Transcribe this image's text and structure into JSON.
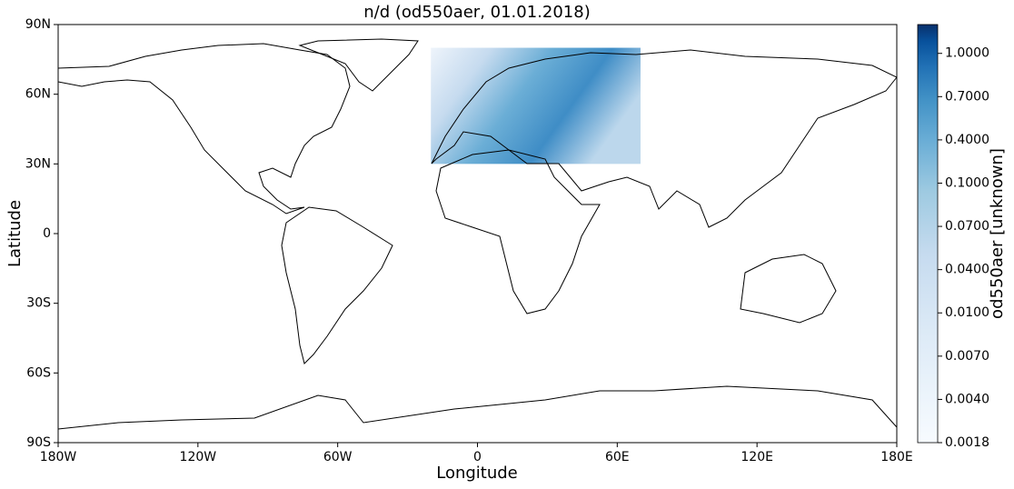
{
  "chart_data": {
    "type": "map",
    "title": "n/d (od550aer, 01.01.2018)",
    "x_label": "Longitude",
    "y_label": "Latitude",
    "xlim": [
      -180,
      180
    ],
    "ylim": [
      -90,
      90
    ],
    "xticks": [
      {
        "value": -180,
        "label": "180W"
      },
      {
        "value": -120,
        "label": "120W"
      },
      {
        "value": -60,
        "label": "60W"
      },
      0,
      {
        "value": 60,
        "label": "60E"
      },
      {
        "value": 120,
        "label": "120E"
      },
      {
        "value": 180,
        "label": "180E"
      }
    ],
    "yticks": [
      {
        "value": 90,
        "label": "90N"
      },
      {
        "value": 60,
        "label": "60N"
      },
      {
        "value": 30,
        "label": "30N"
      },
      0,
      {
        "value": -30,
        "label": "30S"
      },
      {
        "value": -60,
        "label": "60S"
      },
      {
        "value": -90,
        "label": "90S"
      }
    ],
    "field": {
      "lon": [
        -20,
        70
      ],
      "lat": [
        30,
        80
      ]
    },
    "colorbar": {
      "label": "od550aer [unknown]",
      "lim": [
        0.0018,
        1.2
      ],
      "ticks": [
        0.0018,
        {
          "value": 0.004,
          "label": "0.0040"
        },
        {
          "value": 0.007,
          "label": "0.0070"
        },
        {
          "value": 0.01,
          "label": "0.0100"
        },
        {
          "value": 0.04,
          "label": "0.0400"
        },
        {
          "value": 0.07,
          "label": "0.0700"
        },
        {
          "value": 0.1,
          "label": "0.1000"
        },
        {
          "value": 0.4,
          "label": "0.4000"
        },
        {
          "value": 0.7,
          "label": "0.7000"
        },
        {
          "value": 1,
          "label": "1.0000"
        }
      ]
    }
  }
}
